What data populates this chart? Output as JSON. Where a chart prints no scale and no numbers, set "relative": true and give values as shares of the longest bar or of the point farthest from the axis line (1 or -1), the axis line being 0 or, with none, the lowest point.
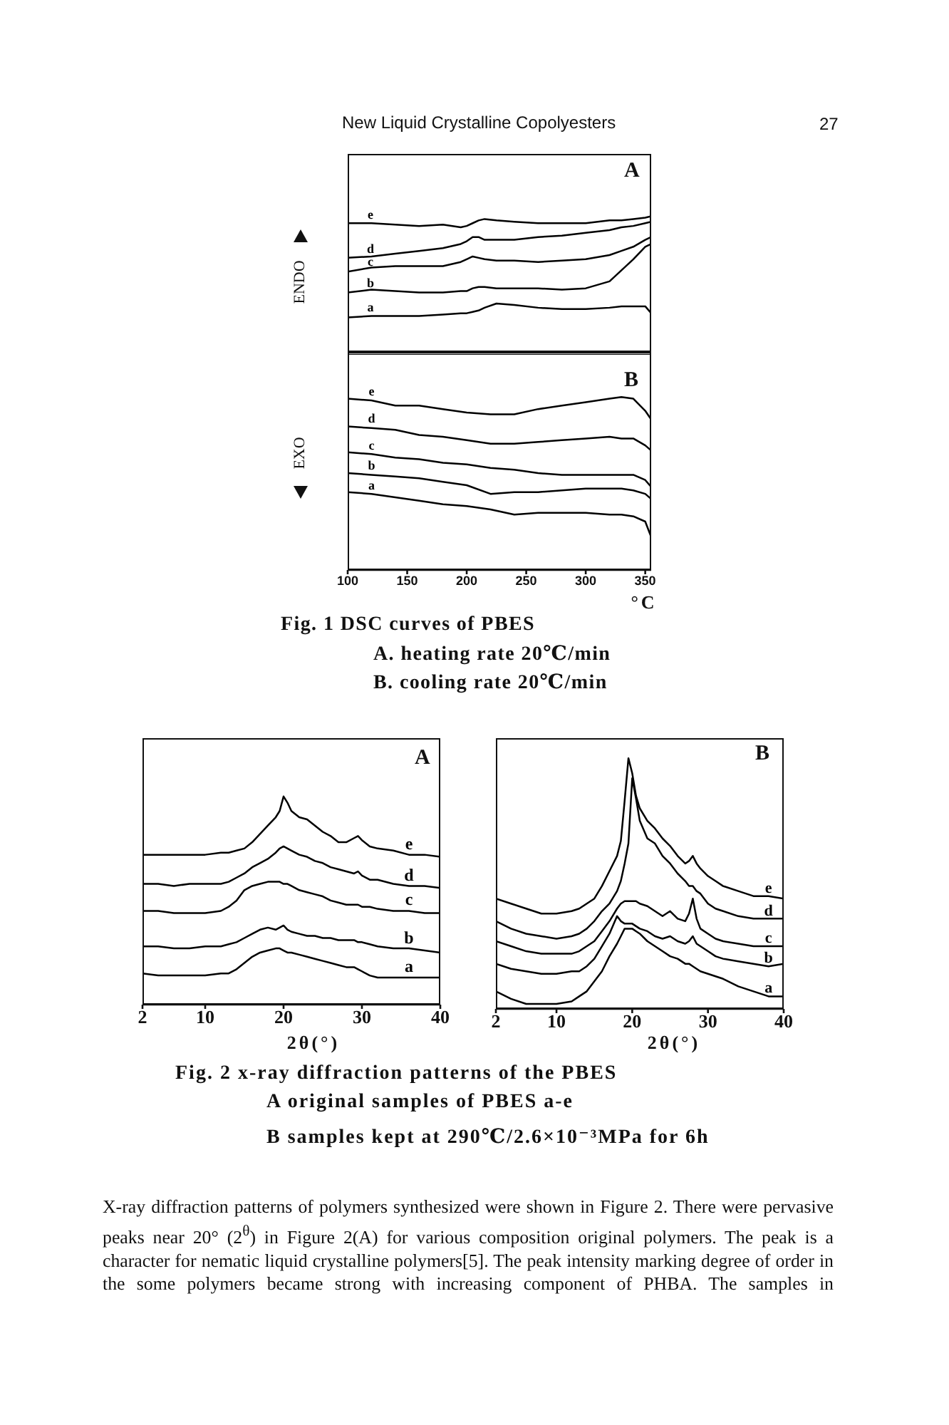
{
  "chart_data": [
    {
      "type": "line",
      "title": "A",
      "ylabel": "ENDO",
      "annotations": [
        "New Liquid Crystalline Copolyesters",
        "27"
      ],
      "relative": true,
      "tick_labels": false,
      "xlim": [
        100,
        355
      ],
      "xticks": [
        150,
        200,
        250,
        300
      ],
      "x": [
        100,
        120,
        140,
        160,
        180,
        195,
        200,
        205,
        210,
        215,
        225,
        240,
        260,
        280,
        300,
        320,
        330,
        340,
        350,
        355
      ],
      "series": [
        {
          "name": "e",
          "color": "#000000",
          "values": [
            0.95,
            0.95,
            0.94,
            0.93,
            0.94,
            0.92,
            0.93,
            0.95,
            0.97,
            0.98,
            0.97,
            0.96,
            0.95,
            0.95,
            0.95,
            0.97,
            0.97,
            0.98,
            0.99,
            1
          ]
        },
        {
          "name": "d",
          "color": "#000000",
          "values": [
            0.7,
            0.71,
            0.73,
            0.75,
            0.77,
            0.8,
            0.82,
            0.85,
            0.85,
            0.83,
            0.83,
            0.83,
            0.85,
            0.86,
            0.88,
            0.9,
            0.92,
            0.93,
            0.95,
            0.96
          ]
        },
        {
          "name": "c",
          "color": "#000000",
          "values": [
            0.6,
            0.63,
            0.64,
            0.64,
            0.64,
            0.67,
            0.69,
            0.71,
            0.7,
            0.69,
            0.68,
            0.68,
            0.67,
            0.68,
            0.69,
            0.72,
            0.75,
            0.78,
            0.83,
            0.85
          ]
        },
        {
          "name": "b",
          "color": "#000000",
          "values": [
            0.45,
            0.47,
            0.46,
            0.45,
            0.45,
            0.46,
            0.46,
            0.48,
            0.49,
            0.49,
            0.48,
            0.48,
            0.48,
            0.47,
            0.48,
            0.53,
            0.61,
            0.69,
            0.78,
            0.8
          ]
        },
        {
          "name": "a",
          "color": "#000000",
          "values": [
            0.27,
            0.28,
            0.28,
            0.28,
            0.29,
            0.3,
            0.3,
            0.31,
            0.32,
            0.34,
            0.37,
            0.36,
            0.34,
            0.33,
            0.33,
            0.34,
            0.35,
            0.35,
            0.35,
            0.3
          ]
        }
      ]
    },
    {
      "type": "line",
      "title": "B",
      "ylabel": "EXO",
      "xlabel": "°C",
      "annotations": [
        "Fig. 1 DSC curves of PBES",
        "A. heating rate 20℃/min",
        "B. cooling rate 20℃/min"
      ],
      "relative": true,
      "tick_labels": "x",
      "xlim": [
        100,
        355
      ],
      "xticks": [
        100,
        150,
        200,
        250,
        300,
        350
      ],
      "x": [
        100,
        120,
        140,
        160,
        180,
        200,
        220,
        240,
        260,
        280,
        300,
        320,
        330,
        340,
        350,
        355
      ],
      "series": [
        {
          "name": "e",
          "color": "#000000",
          "values": [
            0.99,
            0.98,
            0.95,
            0.95,
            0.93,
            0.91,
            0.9,
            0.9,
            0.93,
            0.95,
            0.97,
            0.99,
            1,
            0.99,
            0.92,
            0.87
          ]
        },
        {
          "name": "d",
          "color": "#000000",
          "values": [
            0.83,
            0.82,
            0.81,
            0.78,
            0.77,
            0.75,
            0.73,
            0.73,
            0.74,
            0.75,
            0.76,
            0.77,
            0.76,
            0.76,
            0.72,
            0.69
          ]
        },
        {
          "name": "c",
          "color": "#000000",
          "values": [
            0.68,
            0.67,
            0.65,
            0.64,
            0.62,
            0.61,
            0.59,
            0.58,
            0.56,
            0.55,
            0.55,
            0.55,
            0.55,
            0.55,
            0.52,
            0.48
          ]
        },
        {
          "name": "b",
          "color": "#000000",
          "values": [
            0.56,
            0.55,
            0.54,
            0.53,
            0.51,
            0.49,
            0.44,
            0.45,
            0.45,
            0.46,
            0.47,
            0.47,
            0.47,
            0.46,
            0.44,
            0.41
          ]
        },
        {
          "name": "a",
          "color": "#000000",
          "values": [
            0.45,
            0.44,
            0.42,
            0.4,
            0.38,
            0.37,
            0.35,
            0.32,
            0.33,
            0.33,
            0.33,
            0.32,
            0.32,
            0.31,
            0.28,
            0.19
          ]
        }
      ]
    },
    {
      "type": "line",
      "title": "A",
      "xlabel": "2θ(°)",
      "relative": true,
      "tick_labels": "x",
      "xlim": [
        2,
        40
      ],
      "xticks": [
        2,
        10,
        20,
        30,
        40
      ],
      "x": [
        2,
        4,
        6,
        8,
        10,
        12,
        13,
        14,
        15,
        16,
        17,
        18,
        19,
        19.5,
        20,
        20.5,
        21,
        22,
        23,
        24,
        25,
        26,
        27,
        28,
        29,
        29.5,
        30,
        31,
        32,
        34,
        36,
        38,
        40
      ],
      "series": [
        {
          "name": "e",
          "color": "#000000",
          "values": [
            0.72,
            0.72,
            0.72,
            0.72,
            0.72,
            0.73,
            0.73,
            0.74,
            0.75,
            0.78,
            0.82,
            0.86,
            0.9,
            0.93,
            1,
            0.97,
            0.93,
            0.9,
            0.89,
            0.86,
            0.83,
            0.81,
            0.78,
            0.78,
            0.8,
            0.81,
            0.79,
            0.76,
            0.75,
            0.74,
            0.72,
            0.72,
            0.71
          ]
        },
        {
          "name": "d",
          "color": "#000000",
          "values": [
            0.58,
            0.58,
            0.57,
            0.58,
            0.58,
            0.58,
            0.59,
            0.61,
            0.63,
            0.66,
            0.68,
            0.7,
            0.73,
            0.75,
            0.76,
            0.75,
            0.74,
            0.72,
            0.71,
            0.69,
            0.68,
            0.66,
            0.65,
            0.64,
            0.63,
            0.64,
            0.62,
            0.6,
            0.6,
            0.58,
            0.57,
            0.57,
            0.56
          ]
        },
        {
          "name": "c",
          "color": "#000000",
          "values": [
            0.45,
            0.45,
            0.44,
            0.44,
            0.44,
            0.45,
            0.47,
            0.5,
            0.55,
            0.57,
            0.58,
            0.59,
            0.59,
            0.59,
            0.58,
            0.58,
            0.57,
            0.55,
            0.54,
            0.53,
            0.52,
            0.5,
            0.49,
            0.48,
            0.48,
            0.48,
            0.47,
            0.47,
            0.46,
            0.45,
            0.45,
            0.44,
            0.44
          ]
        },
        {
          "name": "b",
          "color": "#000000",
          "values": [
            0.28,
            0.28,
            0.27,
            0.27,
            0.28,
            0.28,
            0.29,
            0.3,
            0.32,
            0.34,
            0.36,
            0.37,
            0.36,
            0.37,
            0.38,
            0.36,
            0.35,
            0.34,
            0.33,
            0.33,
            0.32,
            0.32,
            0.31,
            0.31,
            0.31,
            0.3,
            0.3,
            0.29,
            0.28,
            0.27,
            0.27,
            0.26,
            0.25
          ]
        },
        {
          "name": "a",
          "color": "#000000",
          "values": [
            0.15,
            0.14,
            0.14,
            0.14,
            0.14,
            0.15,
            0.15,
            0.17,
            0.2,
            0.23,
            0.25,
            0.26,
            0.27,
            0.27,
            0.26,
            0.25,
            0.25,
            0.24,
            0.23,
            0.22,
            0.21,
            0.2,
            0.19,
            0.18,
            0.18,
            0.17,
            0.16,
            0.14,
            0.13,
            0.13,
            0.13,
            0.13,
            0.13
          ]
        }
      ]
    },
    {
      "type": "line",
      "title": "B",
      "xlabel": "2θ(°)",
      "annotations": [
        "Fig. 2 x-ray diffraction patterns of the PBES",
        "A original samples of PBES a-e",
        "B samples kept at 290℃/2.6×10⁻³MPa for 6h",
        "X-ray diffraction patterns of polymers synthesized were shown in Figure 2.  There were pervasive peaks near 20° (2$^{θ}$) in Figure 2(A) for various composition original polymers.  The peak is a character for nematic liquid crystalline polymers[5].  The peak intensity marking degree of order in the some polymers became strong with increasing component of PHBA.  The samples in"
      ],
      "relative": true,
      "tick_labels": "x",
      "xlim": [
        2,
        40
      ],
      "xticks": [
        2,
        10,
        20,
        30,
        40
      ],
      "x": [
        2,
        4,
        6,
        8,
        10,
        12,
        13,
        14,
        15,
        16,
        17,
        18,
        18.5,
        19,
        19.5,
        20,
        20.5,
        21,
        22,
        23,
        24,
        25,
        26,
        27,
        27.5,
        28,
        28.5,
        29,
        30,
        31,
        32,
        34,
        36,
        38,
        40
      ],
      "series": [
        {
          "name": "e",
          "color": "#000000",
          "values": [
            0.44,
            0.42,
            0.4,
            0.38,
            0.38,
            0.39,
            0.4,
            0.42,
            0.44,
            0.49,
            0.55,
            0.61,
            0.67,
            0.83,
            1,
            0.94,
            0.85,
            0.8,
            0.75,
            0.72,
            0.68,
            0.65,
            0.61,
            0.58,
            0.59,
            0.61,
            0.58,
            0.56,
            0.53,
            0.51,
            0.49,
            0.47,
            0.45,
            0.45,
            0.44
          ]
        },
        {
          "name": "d",
          "color": "#000000",
          "values": [
            0.35,
            0.32,
            0.3,
            0.29,
            0.28,
            0.29,
            0.3,
            0.32,
            0.35,
            0.39,
            0.42,
            0.47,
            0.51,
            0.58,
            0.66,
            0.92,
            0.84,
            0.75,
            0.68,
            0.66,
            0.61,
            0.58,
            0.54,
            0.51,
            0.49,
            0.49,
            0.47,
            0.46,
            0.42,
            0.4,
            0.39,
            0.37,
            0.36,
            0.36,
            0.36
          ]
        },
        {
          "name": "c",
          "color": "#000000",
          "values": [
            0.27,
            0.25,
            0.23,
            0.22,
            0.22,
            0.22,
            0.23,
            0.25,
            0.27,
            0.31,
            0.35,
            0.4,
            0.42,
            0.43,
            0.43,
            0.43,
            0.43,
            0.42,
            0.41,
            0.39,
            0.37,
            0.39,
            0.36,
            0.35,
            0.38,
            0.44,
            0.36,
            0.32,
            0.3,
            0.28,
            0.27,
            0.26,
            0.25,
            0.25,
            0.25
          ]
        },
        {
          "name": "b",
          "color": "#000000",
          "values": [
            0.18,
            0.16,
            0.15,
            0.14,
            0.14,
            0.15,
            0.15,
            0.17,
            0.2,
            0.25,
            0.3,
            0.37,
            0.35,
            0.34,
            0.34,
            0.34,
            0.33,
            0.32,
            0.31,
            0.29,
            0.28,
            0.29,
            0.27,
            0.26,
            0.27,
            0.29,
            0.26,
            0.25,
            0.23,
            0.21,
            0.2,
            0.19,
            0.18,
            0.17,
            0.18
          ]
        },
        {
          "name": "a",
          "color": "#000000",
          "values": [
            0.07,
            0.04,
            0.02,
            0.02,
            0.02,
            0.03,
            0.05,
            0.07,
            0.11,
            0.15,
            0.21,
            0.26,
            0.29,
            0.32,
            0.32,
            0.32,
            0.31,
            0.3,
            0.27,
            0.25,
            0.23,
            0.21,
            0.2,
            0.18,
            0.18,
            0.17,
            0.16,
            0.15,
            0.14,
            0.13,
            0.12,
            0.09,
            0.07,
            0.05,
            0.05
          ]
        }
      ]
    }
  ]
}
